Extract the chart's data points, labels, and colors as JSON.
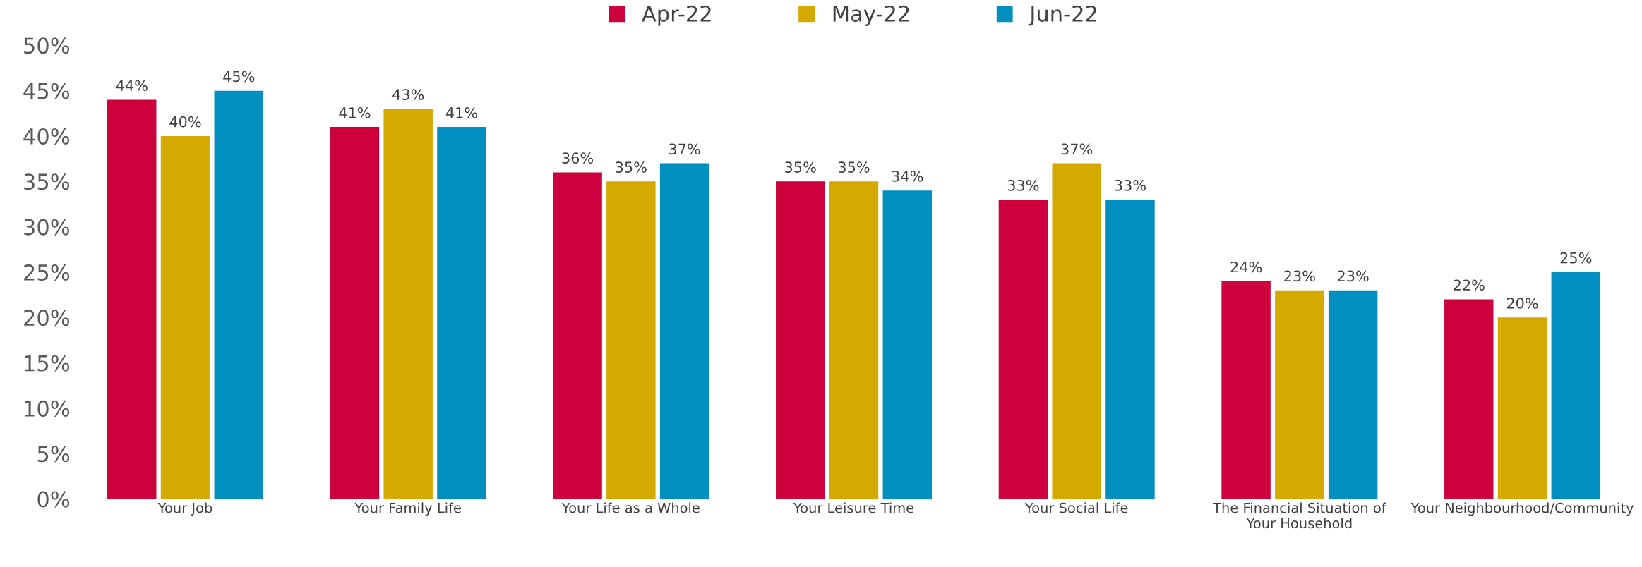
{
  "chart_data": {
    "type": "bar",
    "categories": [
      "Your Job",
      "Your Family Life",
      "Your Life as a Whole",
      "Your Leisure Time",
      "Your Social Life",
      "The Financial Situation of Your Household",
      "Your Neighbourhood/Community"
    ],
    "series": [
      {
        "name": "Apr-22",
        "color": "#cc003d",
        "values": [
          44,
          41,
          36,
          35,
          33,
          24,
          22
        ],
        "value_labels": [
          "44%",
          "41%",
          "36%",
          "35%",
          "33%",
          "24%",
          "22%"
        ]
      },
      {
        "name": "May-22",
        "color": "#d4a900",
        "values": [
          40,
          43,
          35,
          35,
          37,
          23,
          20
        ],
        "value_labels": [
          "40%",
          "43%",
          "35%",
          "35%",
          "37%",
          "23%",
          "20%"
        ]
      },
      {
        "name": "Jun-22",
        "color": "#008fbf",
        "values": [
          45,
          41,
          37,
          34,
          33,
          23,
          25
        ],
        "value_labels": [
          "45%",
          "41%",
          "37%",
          "34%",
          "33%",
          "23%",
          "25%"
        ]
      }
    ],
    "ylim": [
      0,
      50
    ],
    "yticks": [
      {
        "value": 0,
        "label": "0%"
      },
      {
        "value": 5,
        "label": "5%"
      },
      {
        "value": 10,
        "label": "10%"
      },
      {
        "value": 15,
        "label": "15%"
      },
      {
        "value": 20,
        "label": "20%"
      },
      {
        "value": 25,
        "label": "25%"
      },
      {
        "value": 30,
        "label": "30%"
      },
      {
        "value": 35,
        "label": "35%"
      },
      {
        "value": 40,
        "label": "40%"
      },
      {
        "value": 45,
        "label": "45%"
      },
      {
        "value": 50,
        "label": "50%"
      }
    ],
    "grid": false,
    "legend": "top"
  }
}
